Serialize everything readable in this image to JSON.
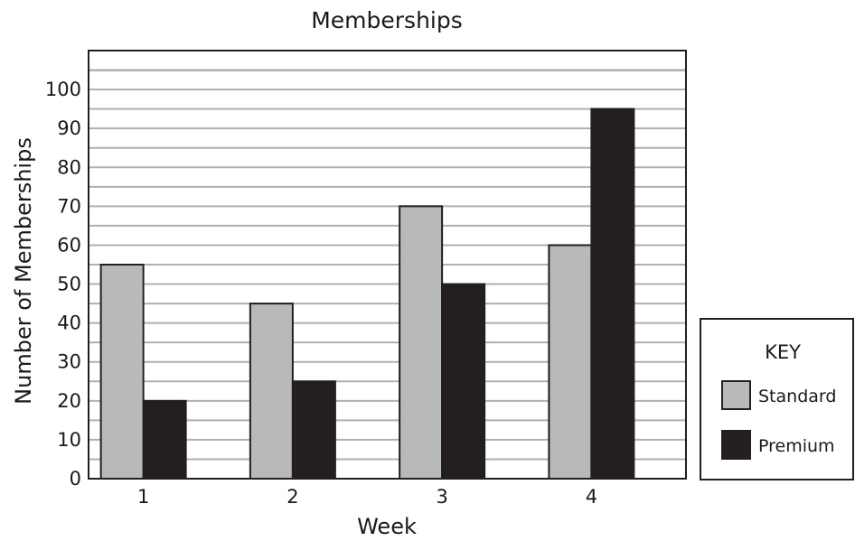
{
  "chart_data": {
    "type": "bar",
    "title": "Memberships",
    "xlabel": "Week",
    "ylabel": "Number of Memberships",
    "categories": [
      "1",
      "2",
      "3",
      "4"
    ],
    "series": [
      {
        "name": "Standard",
        "values": [
          55,
          45,
          70,
          60
        ],
        "color": "#b8b9bb"
      },
      {
        "name": "Premium",
        "values": [
          20,
          25,
          50,
          95
        ],
        "color": "#231f20"
      }
    ],
    "ylim": [
      0,
      110
    ],
    "yticks": [
      0,
      10,
      20,
      30,
      40,
      50,
      60,
      70,
      80,
      90,
      100
    ],
    "minor_grid_step": 5,
    "grid": true,
    "legend": {
      "title": "KEY",
      "placement": "right"
    }
  }
}
